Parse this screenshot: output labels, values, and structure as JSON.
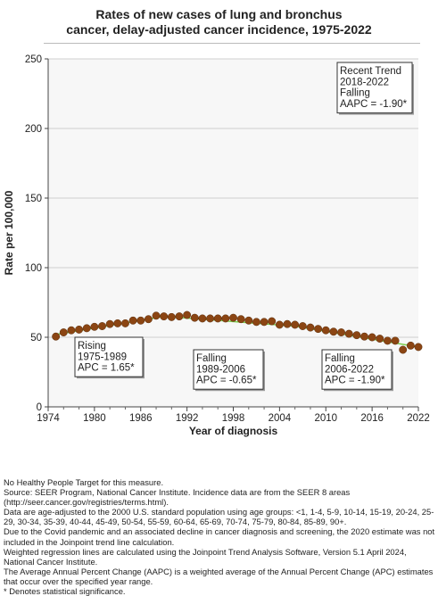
{
  "title_line1": "Rates of new cases of lung and bronchus",
  "title_line2": "cancer, delay-adjusted cancer incidence, 1975-2022",
  "chart_data": {
    "type": "scatter",
    "xlabel": "Year of diagnosis",
    "ylabel": "Rate per 100,000",
    "xlim": [
      1974,
      2022
    ],
    "ylim": [
      0,
      250
    ],
    "x_ticks": [
      1974,
      1980,
      1986,
      1992,
      1998,
      2004,
      2010,
      2016,
      2022
    ],
    "y_ticks": [
      0,
      50,
      100,
      150,
      200,
      250
    ],
    "grid": "horizontal",
    "point_color": "#8B4513",
    "trend_color": "#7CCD4C",
    "observed": {
      "x": [
        1975,
        1976,
        1977,
        1978,
        1979,
        1980,
        1981,
        1982,
        1983,
        1984,
        1985,
        1986,
        1987,
        1988,
        1989,
        1990,
        1991,
        1992,
        1993,
        1994,
        1995,
        1996,
        1997,
        1998,
        1999,
        2000,
        2001,
        2002,
        2003,
        2004,
        2005,
        2006,
        2007,
        2008,
        2009,
        2010,
        2011,
        2012,
        2013,
        2014,
        2015,
        2016,
        2017,
        2018,
        2019,
        2020,
        2021,
        2022
      ],
      "y": [
        50.5,
        53.5,
        55.0,
        55.5,
        56.5,
        57.5,
        58.0,
        59.5,
        60.0,
        60.0,
        62.0,
        62.0,
        63.0,
        65.5,
        65.0,
        64.5,
        65.0,
        66.0,
        64.0,
        63.5,
        63.5,
        63.5,
        63.5,
        64.0,
        63.0,
        62.0,
        61.0,
        61.0,
        61.5,
        59.0,
        59.5,
        59.0,
        58.0,
        57.0,
        56.0,
        55.0,
        54.0,
        53.5,
        52.5,
        51.5,
        50.5,
        50.0,
        49.0,
        47.5,
        47.5,
        41.0,
        44.0,
        43.0
      ]
    },
    "segments": [
      {
        "from": 1975,
        "to": 1989,
        "label_lines": [
          "Rising",
          "1975-1989",
          "APC =  1.65*"
        ],
        "position": "bottom-left"
      },
      {
        "from": 1989,
        "to": 2006,
        "label_lines": [
          "Falling",
          "1989-2006",
          "APC = -0.65*"
        ],
        "position": "bottom-center"
      },
      {
        "from": 2006,
        "to": 2022,
        "label_lines": [
          "Falling",
          "2006-2022",
          "APC = -1.90*"
        ],
        "position": "bottom-right"
      }
    ],
    "trend_fit": {
      "x": [
        1975,
        1989,
        2006,
        2022
      ],
      "y": [
        52.0,
        65.0,
        58.0,
        43.0
      ]
    },
    "recent_trend": {
      "label_lines": [
        "Recent Trend",
        "2018-2022",
        "Falling",
        "AAPC = -1.90*"
      ],
      "position": "top-right"
    }
  },
  "notes": [
    "No Healthy People Target for this measure.",
    "Source: SEER Program, National Cancer Institute. Incidence data are from the SEER 8 areas (http://seer.cancer.gov/registries/terms.html).",
    "Data are age-adjusted to the 2000 U.S. standard population using age groups: <1, 1-4, 5-9, 10-14, 15-19, 20-24, 25-29, 30-34, 35-39, 40-44, 45-49, 50-54, 55-59, 60-64, 65-69, 70-74, 75-79, 80-84, 85-89, 90+.",
    "Due to the Covid pandemic and an associated decline in cancer diagnosis and screening, the 2020 estimate was not included in the Joinpoint trend line calculation.",
    "Weighted regression lines are calculated using the Joinpoint Trend Analysis Software, Version 5.1 April 2024, National Cancer Institute.",
    "The Average Annual Percent Change (AAPC) is a weighted average of the Annual Percent Change (APC) estimates that occur over the specified year range.",
    "* Denotes statistical significance."
  ]
}
